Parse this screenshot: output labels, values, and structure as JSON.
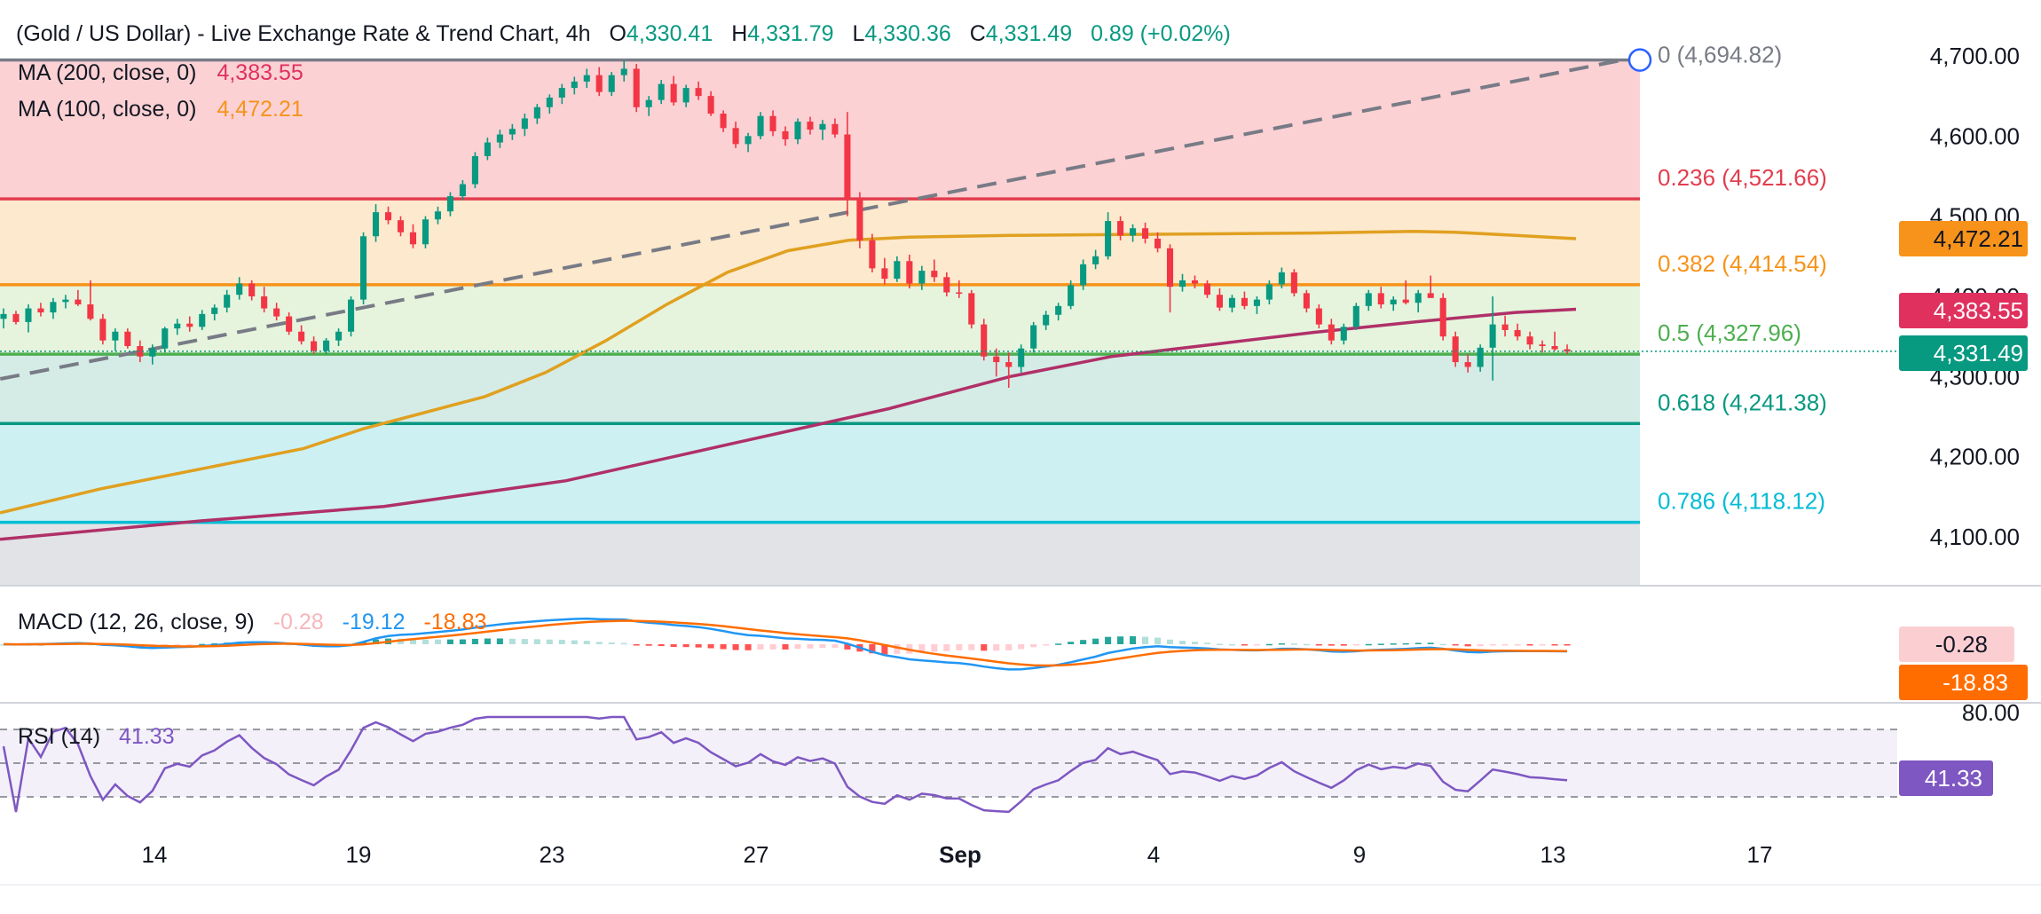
{
  "header": {
    "symbol": "(Gold / US Dollar) - Live Exchange Rate & Trend Chart, 4h",
    "o_label": "O",
    "o_value": "4,330.41",
    "h_label": "H",
    "h_value": "4,331.79",
    "l_label": "L",
    "l_value": "4,330.36",
    "c_label": "C",
    "c_value": "4,331.49",
    "change": "0.89 (+0.02%)"
  },
  "colors": {
    "up": "#089981",
    "down": "#f23645",
    "ma200": "#b03068",
    "ma100": "#e0a020",
    "macd": "#2196f3",
    "signal": "#ff6d00",
    "rsi": "#7e57c2",
    "trend": "#787b86"
  },
  "legend": {
    "ma200": {
      "label": "MA (200, close, 0)",
      "value": "4,383.55"
    },
    "ma100": {
      "label": "MA (100, close, 0)",
      "value": "4,472.21"
    },
    "macd": {
      "label": "MACD (12, 26, close, 9)",
      "hist": "-0.28",
      "macd": "-19.12",
      "signal": "-18.83"
    },
    "rsi": {
      "label": "RSI (14)",
      "value": "41.33"
    }
  },
  "badges": {
    "ma100": "4,472.21",
    "ma200": "4,383.55",
    "price": "4,331.49",
    "macd_hist": "-0.28",
    "macd_signal": "-18.83",
    "rsi": "41.33"
  },
  "chart_data": {
    "type": "candlestick",
    "timeframe": "4h",
    "price_axis": {
      "ticks": [
        "4,700.00",
        "4,600.00",
        "4,500.00",
        "4,400.00",
        "4,300.00",
        "4,200.00",
        "4,100.00"
      ],
      "range": [
        4030,
        4720
      ]
    },
    "x_axis_labels": [
      "14",
      "19",
      "23",
      "27",
      "Sep",
      "4",
      "9",
      "13",
      "17"
    ],
    "fibonacci": [
      {
        "label": "0 (4,694.82)",
        "level": 4694.82
      },
      {
        "label": "0.236 (4,521.66)",
        "level": 4521.66
      },
      {
        "label": "0.382 (4,414.54)",
        "level": 4414.54
      },
      {
        "label": "0.5 (4,327.96)",
        "level": 4327.96
      },
      {
        "label": "0.618 (4,241.38)",
        "level": 4241.38
      },
      {
        "label": "0.786 (4,118.12)",
        "level": 4118.12
      }
    ],
    "fib_zone_colors": [
      "#fbd1d4",
      "#fde9cd",
      "#e6f4dd",
      "#d5ece6",
      "#cdf0f3",
      "#e2e3e6"
    ],
    "fib_line_colors": [
      "#787b86",
      "#e23d4f",
      "#f7931a",
      "#4caf50",
      "#089981",
      "#00bcd4"
    ],
    "fib_text_colors": [
      "#787b86",
      "#e23d4f",
      "#f7931a",
      "#4caf50",
      "#089981",
      "#00bcd4"
    ],
    "trendline": [
      [
        -0.5,
        4297
      ],
      [
        82.5,
        4694.82
      ]
    ],
    "ma100_points": [
      [
        0,
        4130
      ],
      [
        5,
        4160
      ],
      [
        10,
        4185
      ],
      [
        15,
        4210
      ],
      [
        18,
        4235
      ],
      [
        21,
        4255
      ],
      [
        24,
        4275
      ],
      [
        27,
        4305
      ],
      [
        30,
        4345
      ],
      [
        33,
        4390
      ],
      [
        36,
        4430
      ],
      [
        39,
        4457
      ],
      [
        42,
        4470
      ],
      [
        45,
        4474
      ],
      [
        50,
        4476
      ],
      [
        55,
        4477
      ],
      [
        60,
        4478
      ],
      [
        65,
        4479
      ],
      [
        70,
        4481
      ],
      [
        72,
        4480
      ],
      [
        75,
        4476
      ],
      [
        78,
        4472
      ]
    ],
    "ma200_points": [
      [
        0,
        4097
      ],
      [
        10,
        4120
      ],
      [
        19,
        4138
      ],
      [
        28,
        4170
      ],
      [
        36,
        4215
      ],
      [
        44,
        4260
      ],
      [
        50,
        4300
      ],
      [
        55,
        4325
      ],
      [
        60,
        4340
      ],
      [
        65,
        4355
      ],
      [
        70,
        4368
      ],
      [
        75,
        4380
      ],
      [
        78,
        4384
      ]
    ],
    "candles": [
      [
        4377,
        4378,
        4368,
        4360,
        4385,
        4358,
        4362,
        4379,
        4379,
        4392,
        4388,
        4398,
        4397,
        4385,
        4385,
        4362,
        4362,
        4362,
        4362,
        4349,
        4349,
        4344,
        4344,
        4326,
        4326,
        4329,
        4329,
        4337,
        4337,
        4364,
        4364,
        4369,
        4369,
        4364,
        4364,
        4362,
        4362,
        4380,
        4380,
        4384,
        4384,
        4408,
        4408,
        4401,
        4401,
        4421,
        4421,
        4404,
        4404,
        4385,
        4385,
        4380,
        4380,
        4356,
        4356,
        4346,
        4346,
        4335,
        4335,
        4342,
        4342,
        4357,
        4357,
        4373,
        4373,
        4390,
        4390,
        4392,
        4392,
        4396,
        4396,
        4390,
        4390,
        4364,
        4364,
        4381,
        4381,
        4373,
        4373,
        4358,
        4358,
        4331,
        4331,
        4333,
        4333,
        4339,
        4339,
        4360,
        4360,
        4398,
        4398,
        4475,
        4475,
        4511,
        4511,
        4498,
        4498,
        4484,
        4484,
        4468,
        4468,
        4452,
        4452,
        4490,
        4490,
        4508,
        4508,
        4525,
        4525,
        4535,
        4535,
        4572,
        4572,
        4590,
        4590,
        4601,
        4601,
        4610,
        4610,
        4622,
        4622,
        4625,
        4625,
        4642,
        4642,
        4648,
        4648,
        4657,
        4657,
        4666,
        4666,
        4671,
        4671,
        4663,
        4663,
        4655,
        4655,
        4675,
        4675,
        4681,
        4681,
        4675,
        4675,
        4640,
        4640,
        4643,
        4643,
        4660,
        4660,
        4666,
        4666,
        4640,
        4640,
        4660,
        4660,
        4663,
        4663,
        4656,
        4656,
        4630,
        4630,
        4615,
        4615,
        4590,
        4590,
        4595,
        4595,
        4605,
        4605,
        4625,
        4625,
        4612,
        4612,
        4605,
        4605,
        4598,
        4598,
        4620,
        4620,
        4612,
        4612,
        4604,
        4604,
        4617,
        4617,
        4603,
        4603,
        4615,
        4615,
        4577,
        4577,
        4522,
        4522,
        4470,
        4470,
        4432,
        4432,
        4415,
        4415,
        4426,
        4426,
        4445,
        4445,
        4430,
        4430,
        4416,
        4416,
        4420,
        4420,
        4433,
        4433,
        4426,
        4426,
        4421,
        4421,
        4432,
        4432,
        4423,
        4423,
        4414,
        4414,
        4401,
        4401,
        4371,
        4371,
        4345,
        4345,
        4320,
        4320,
        4317,
        4317,
        4325,
        4325,
        4315,
        4315,
        4325,
        4325,
        4362,
        4362,
        4373,
        4373,
        4378,
        4378,
        4386,
        4386,
        4403,
        4403,
        4441,
        4441,
        4449,
        4449,
        4470,
        4470,
        4490,
        4490,
        4475,
        4475,
        4470,
        4470,
        4460,
        4460,
        4456,
        4456,
        4445,
        4445,
        4420,
        4420,
        4411,
        4411,
        4413,
        4413,
        4409,
        4409,
        4398,
        4398,
        4387,
        4387,
        4397,
        4397,
        4397,
        4397,
        4382,
        4382,
        4382,
        4382,
        4395,
        4395,
        4410,
        4410,
        4420,
        4420,
        4430,
        4430,
        4424,
        4424,
        4404,
        4404,
        4385,
        4385,
        4369,
        4369,
        4345,
        4345,
        4341,
        4341,
        4356,
        4356,
        4378,
        4378,
        4390,
        4390,
        4400,
        4400,
        4388,
        4388,
        4392,
        4392,
        4390,
        4390,
        4380,
        4380,
        4400,
        4400,
        4406,
        4406,
        4402,
        4402,
        4386,
        4386,
        4374,
        4374,
        4343,
        4343,
        4330,
        4330,
        4318,
        4318,
        4305,
        4305,
        4315,
        4315,
        4330,
        4330,
        4356,
        4356,
        4373,
        4373,
        4360,
        4360,
        4350,
        4350,
        4333,
        4333,
        4338,
        4338,
        4332,
        4332,
        4330,
        4330,
        4331
      ]
    ],
    "candle_ohlc": [
      [
        4372,
        4385,
        4360,
        4378
      ],
      [
        4378,
        4382,
        4365,
        4368
      ],
      [
        4368,
        4390,
        4355,
        4385
      ],
      [
        4385,
        4392,
        4375,
        4380
      ],
      [
        4380,
        4398,
        4372,
        4393
      ],
      [
        4393,
        4402,
        4385,
        4396
      ],
      [
        4396,
        4408,
        4388,
        4390
      ],
      [
        4390,
        4420,
        4370,
        4372
      ],
      [
        4372,
        4378,
        4340,
        4345
      ],
      [
        4345,
        4360,
        4332,
        4356
      ],
      [
        4356,
        4360,
        4335,
        4338
      ],
      [
        4338,
        4345,
        4318,
        4325
      ],
      [
        4325,
        4340,
        4315,
        4335
      ],
      [
        4335,
        4362,
        4330,
        4360
      ],
      [
        4360,
        4372,
        4352,
        4366
      ],
      [
        4366,
        4375,
        4356,
        4362
      ],
      [
        4362,
        4383,
        4358,
        4378
      ],
      [
        4378,
        4390,
        4370,
        4386
      ],
      [
        4386,
        4408,
        4380,
        4402
      ],
      [
        4402,
        4424,
        4396,
        4416
      ],
      [
        4416,
        4420,
        4395,
        4400
      ],
      [
        4400,
        4412,
        4380,
        4385
      ],
      [
        4385,
        4392,
        4370,
        4375
      ],
      [
        4375,
        4380,
        4352,
        4356
      ],
      [
        4356,
        4364,
        4340,
        4344
      ],
      [
        4344,
        4350,
        4328,
        4332
      ],
      [
        4332,
        4348,
        4328,
        4345
      ],
      [
        4345,
        4360,
        4338,
        4356
      ],
      [
        4356,
        4400,
        4350,
        4396
      ],
      [
        4396,
        4480,
        4390,
        4475
      ],
      [
        4475,
        4515,
        4468,
        4505
      ],
      [
        4505,
        4512,
        4490,
        4495
      ],
      [
        4495,
        4500,
        4475,
        4480
      ],
      [
        4480,
        4490,
        4460,
        4465
      ],
      [
        4465,
        4500,
        4460,
        4496
      ],
      [
        4496,
        4512,
        4490,
        4506
      ],
      [
        4506,
        4530,
        4500,
        4525
      ],
      [
        4525,
        4545,
        4520,
        4540
      ],
      [
        4540,
        4580,
        4535,
        4575
      ],
      [
        4575,
        4598,
        4570,
        4592
      ],
      [
        4592,
        4608,
        4585,
        4602
      ],
      [
        4602,
        4615,
        4595,
        4609
      ],
      [
        4609,
        4628,
        4600,
        4622
      ],
      [
        4622,
        4640,
        4615,
        4636
      ],
      [
        4636,
        4652,
        4628,
        4648
      ],
      [
        4648,
        4665,
        4640,
        4660
      ],
      [
        4660,
        4674,
        4652,
        4668
      ],
      [
        4668,
        4684,
        4660,
        4676
      ],
      [
        4676,
        4686,
        4650,
        4655
      ],
      [
        4655,
        4680,
        4650,
        4676
      ],
      [
        4676,
        4694,
        4668,
        4684
      ],
      [
        4684,
        4690,
        4630,
        4636
      ],
      [
        4636,
        4650,
        4625,
        4645
      ],
      [
        4645,
        4670,
        4640,
        4665
      ],
      [
        4665,
        4675,
        4638,
        4642
      ],
      [
        4642,
        4664,
        4636,
        4660
      ],
      [
        4660,
        4668,
        4645,
        4650
      ],
      [
        4650,
        4656,
        4625,
        4628
      ],
      [
        4628,
        4632,
        4605,
        4610
      ],
      [
        4610,
        4618,
        4585,
        4590
      ],
      [
        4590,
        4604,
        4580,
        4600
      ],
      [
        4600,
        4630,
        4596,
        4625
      ],
      [
        4625,
        4632,
        4600,
        4606
      ],
      [
        4606,
        4612,
        4588,
        4596
      ],
      [
        4596,
        4622,
        4590,
        4618
      ],
      [
        4618,
        4624,
        4602,
        4608
      ],
      [
        4608,
        4620,
        4595,
        4615
      ],
      [
        4615,
        4622,
        4598,
        4602
      ],
      [
        4602,
        4630,
        4500,
        4522
      ],
      [
        4522,
        4530,
        4460,
        4470
      ],
      [
        4470,
        4478,
        4430,
        4435
      ],
      [
        4435,
        4448,
        4415,
        4422
      ],
      [
        4422,
        4450,
        4418,
        4444
      ],
      [
        4444,
        4452,
        4410,
        4416
      ],
      [
        4416,
        4438,
        4408,
        4432
      ],
      [
        4432,
        4446,
        4418,
        4424
      ],
      [
        4424,
        4430,
        4400,
        4405
      ],
      [
        4405,
        4420,
        4398,
        4404
      ],
      [
        4404,
        4408,
        4360,
        4365
      ],
      [
        4365,
        4372,
        4320,
        4325
      ],
      [
        4325,
        4335,
        4300,
        4318
      ],
      [
        4318,
        4330,
        4286,
        4312
      ],
      [
        4312,
        4340,
        4305,
        4335
      ],
      [
        4335,
        4368,
        4330,
        4364
      ],
      [
        4364,
        4382,
        4358,
        4377
      ],
      [
        4377,
        4392,
        4370,
        4388
      ],
      [
        4388,
        4420,
        4384,
        4414
      ],
      [
        4414,
        4446,
        4408,
        4440
      ],
      [
        4440,
        4458,
        4434,
        4450
      ],
      [
        4450,
        4505,
        4446,
        4494
      ],
      [
        4494,
        4500,
        4470,
        4476
      ],
      [
        4476,
        4490,
        4468,
        4485
      ],
      [
        4485,
        4492,
        4466,
        4472
      ],
      [
        4472,
        4480,
        4455,
        4460
      ],
      [
        4460,
        4465,
        4380,
        4412
      ],
      [
        4412,
        4428,
        4406,
        4420
      ],
      [
        4420,
        4426,
        4410,
        4416
      ],
      [
        4416,
        4420,
        4398,
        4402
      ],
      [
        4402,
        4410,
        4382,
        4386
      ],
      [
        4386,
        4402,
        4380,
        4398
      ],
      [
        4398,
        4406,
        4384,
        4388
      ],
      [
        4388,
        4400,
        4378,
        4396
      ],
      [
        4396,
        4420,
        4390,
        4415
      ],
      [
        4415,
        4436,
        4410,
        4430
      ],
      [
        4430,
        4434,
        4400,
        4404
      ],
      [
        4404,
        4408,
        4380,
        4385
      ],
      [
        4385,
        4390,
        4360,
        4365
      ],
      [
        4365,
        4372,
        4340,
        4345
      ],
      [
        4345,
        4366,
        4340,
        4362
      ],
      [
        4362,
        4392,
        4358,
        4388
      ],
      [
        4388,
        4408,
        4382,
        4404
      ],
      [
        4404,
        4412,
        4385,
        4390
      ],
      [
        4390,
        4400,
        4382,
        4396
      ],
      [
        4396,
        4420,
        4390,
        4392
      ],
      [
        4392,
        4408,
        4380,
        4404
      ],
      [
        4404,
        4426,
        4398,
        4398
      ],
      [
        4398,
        4404,
        4345,
        4350
      ],
      [
        4350,
        4356,
        4312,
        4318
      ],
      [
        4318,
        4328,
        4305,
        4312
      ],
      [
        4312,
        4340,
        4306,
        4336
      ],
      [
        4336,
        4400,
        4295,
        4365
      ],
      [
        4365,
        4376,
        4350,
        4358
      ],
      [
        4358,
        4366,
        4345,
        4350
      ],
      [
        4350,
        4356,
        4334,
        4340
      ],
      [
        4340,
        4345,
        4330,
        4338
      ],
      [
        4338,
        4356,
        4332,
        4334
      ],
      [
        4334,
        4340,
        4328,
        4331
      ]
    ]
  }
}
